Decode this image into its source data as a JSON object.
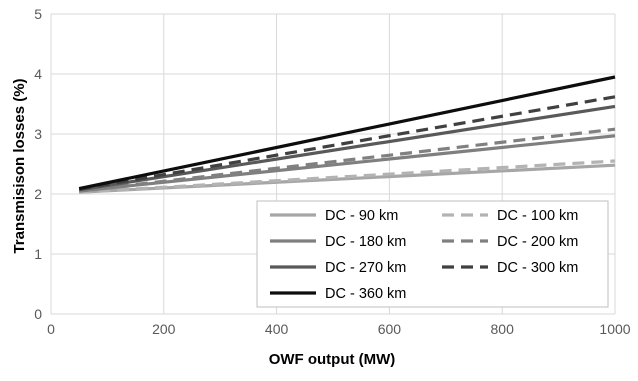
{
  "chart_data": {
    "type": "line",
    "title": "",
    "xlabel": "OWF output  (MW)",
    "ylabel": "Transmisison losses  (%)",
    "xlim": [
      0,
      1000
    ],
    "ylim": [
      0,
      5
    ],
    "x_ticks": [
      0,
      200,
      400,
      600,
      800,
      1000
    ],
    "y_ticks": [
      0,
      1,
      2,
      3,
      4,
      5
    ],
    "x_tick_labels": [
      "0",
      "200",
      "400",
      "600",
      "800",
      "1000"
    ],
    "y_tick_labels": [
      "0",
      "1",
      "2",
      "3",
      "4",
      "5"
    ],
    "grid": "vertical and horizontal major gridlines",
    "legend_position": "bottom-right inside plot",
    "series": [
      {
        "name": "DC - 90 km",
        "color": "#a6a6a6",
        "dash": "solid",
        "x": [
          50,
          1000
        ],
        "y": [
          2.03,
          2.48
        ]
      },
      {
        "name": "DC - 100 km",
        "color": "#b3b3b3",
        "dash": "dashed",
        "x": [
          50,
          1000
        ],
        "y": [
          2.03,
          2.55
        ]
      },
      {
        "name": "DC - 180 km",
        "color": "#7f7f7f",
        "dash": "solid",
        "x": [
          50,
          1000
        ],
        "y": [
          2.05,
          2.97
        ]
      },
      {
        "name": "DC - 200 km",
        "color": "#808080",
        "dash": "dashed",
        "x": [
          50,
          1000
        ],
        "y": [
          2.05,
          3.08
        ]
      },
      {
        "name": "DC - 270 km",
        "color": "#595959",
        "dash": "solid",
        "x": [
          50,
          1000
        ],
        "y": [
          2.07,
          3.46
        ]
      },
      {
        "name": "DC - 300 km",
        "color": "#404040",
        "dash": "dashed",
        "x": [
          50,
          1000
        ],
        "y": [
          2.08,
          3.62
        ]
      },
      {
        "name": "DC - 360 km",
        "color": "#0d0d0d",
        "dash": "solid",
        "x": [
          50,
          1000
        ],
        "y": [
          2.09,
          3.95
        ]
      }
    ],
    "legend_order": [
      0,
      1,
      2,
      3,
      4,
      5,
      6
    ]
  }
}
